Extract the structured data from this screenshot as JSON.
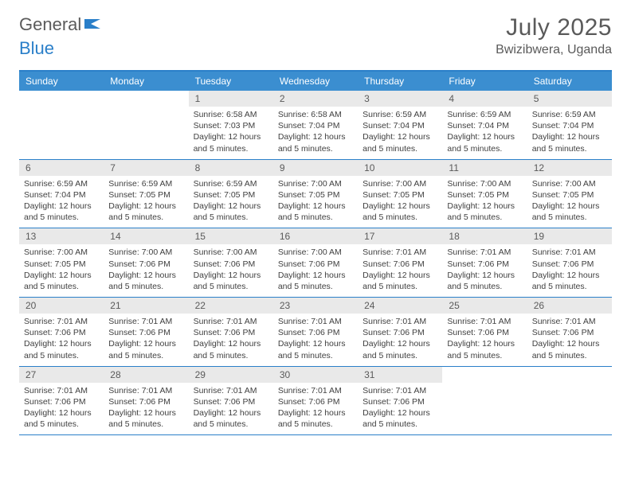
{
  "logo": {
    "word1": "General",
    "word2": "Blue"
  },
  "title": "July 2025",
  "location": "Bwizibwera, Uganda",
  "colors": {
    "header_bar": "#3b8ed0",
    "accent_line": "#2a7fc9",
    "day_num_bg": "#e9e9e9",
    "text_gray": "#5a5a5a",
    "body_text": "#404040",
    "logo_gray": "#5b5b5b",
    "logo_blue": "#2a7fc9"
  },
  "typography": {
    "month_title_size": 30,
    "location_size": 16,
    "dow_size": 12,
    "daynum_size": 12,
    "body_size": 10.5
  },
  "days_of_week": [
    "Sunday",
    "Monday",
    "Tuesday",
    "Wednesday",
    "Thursday",
    "Friday",
    "Saturday"
  ],
  "weeks": [
    [
      {
        "num": "",
        "lines": []
      },
      {
        "num": "",
        "lines": []
      },
      {
        "num": "1",
        "lines": [
          "Sunrise: 6:58 AM",
          "Sunset: 7:03 PM",
          "Daylight: 12 hours",
          "and 5 minutes."
        ]
      },
      {
        "num": "2",
        "lines": [
          "Sunrise: 6:58 AM",
          "Sunset: 7:04 PM",
          "Daylight: 12 hours",
          "and 5 minutes."
        ]
      },
      {
        "num": "3",
        "lines": [
          "Sunrise: 6:59 AM",
          "Sunset: 7:04 PM",
          "Daylight: 12 hours",
          "and 5 minutes."
        ]
      },
      {
        "num": "4",
        "lines": [
          "Sunrise: 6:59 AM",
          "Sunset: 7:04 PM",
          "Daylight: 12 hours",
          "and 5 minutes."
        ]
      },
      {
        "num": "5",
        "lines": [
          "Sunrise: 6:59 AM",
          "Sunset: 7:04 PM",
          "Daylight: 12 hours",
          "and 5 minutes."
        ]
      }
    ],
    [
      {
        "num": "6",
        "lines": [
          "Sunrise: 6:59 AM",
          "Sunset: 7:04 PM",
          "Daylight: 12 hours",
          "and 5 minutes."
        ]
      },
      {
        "num": "7",
        "lines": [
          "Sunrise: 6:59 AM",
          "Sunset: 7:05 PM",
          "Daylight: 12 hours",
          "and 5 minutes."
        ]
      },
      {
        "num": "8",
        "lines": [
          "Sunrise: 6:59 AM",
          "Sunset: 7:05 PM",
          "Daylight: 12 hours",
          "and 5 minutes."
        ]
      },
      {
        "num": "9",
        "lines": [
          "Sunrise: 7:00 AM",
          "Sunset: 7:05 PM",
          "Daylight: 12 hours",
          "and 5 minutes."
        ]
      },
      {
        "num": "10",
        "lines": [
          "Sunrise: 7:00 AM",
          "Sunset: 7:05 PM",
          "Daylight: 12 hours",
          "and 5 minutes."
        ]
      },
      {
        "num": "11",
        "lines": [
          "Sunrise: 7:00 AM",
          "Sunset: 7:05 PM",
          "Daylight: 12 hours",
          "and 5 minutes."
        ]
      },
      {
        "num": "12",
        "lines": [
          "Sunrise: 7:00 AM",
          "Sunset: 7:05 PM",
          "Daylight: 12 hours",
          "and 5 minutes."
        ]
      }
    ],
    [
      {
        "num": "13",
        "lines": [
          "Sunrise: 7:00 AM",
          "Sunset: 7:05 PM",
          "Daylight: 12 hours",
          "and 5 minutes."
        ]
      },
      {
        "num": "14",
        "lines": [
          "Sunrise: 7:00 AM",
          "Sunset: 7:06 PM",
          "Daylight: 12 hours",
          "and 5 minutes."
        ]
      },
      {
        "num": "15",
        "lines": [
          "Sunrise: 7:00 AM",
          "Sunset: 7:06 PM",
          "Daylight: 12 hours",
          "and 5 minutes."
        ]
      },
      {
        "num": "16",
        "lines": [
          "Sunrise: 7:00 AM",
          "Sunset: 7:06 PM",
          "Daylight: 12 hours",
          "and 5 minutes."
        ]
      },
      {
        "num": "17",
        "lines": [
          "Sunrise: 7:01 AM",
          "Sunset: 7:06 PM",
          "Daylight: 12 hours",
          "and 5 minutes."
        ]
      },
      {
        "num": "18",
        "lines": [
          "Sunrise: 7:01 AM",
          "Sunset: 7:06 PM",
          "Daylight: 12 hours",
          "and 5 minutes."
        ]
      },
      {
        "num": "19",
        "lines": [
          "Sunrise: 7:01 AM",
          "Sunset: 7:06 PM",
          "Daylight: 12 hours",
          "and 5 minutes."
        ]
      }
    ],
    [
      {
        "num": "20",
        "lines": [
          "Sunrise: 7:01 AM",
          "Sunset: 7:06 PM",
          "Daylight: 12 hours",
          "and 5 minutes."
        ]
      },
      {
        "num": "21",
        "lines": [
          "Sunrise: 7:01 AM",
          "Sunset: 7:06 PM",
          "Daylight: 12 hours",
          "and 5 minutes."
        ]
      },
      {
        "num": "22",
        "lines": [
          "Sunrise: 7:01 AM",
          "Sunset: 7:06 PM",
          "Daylight: 12 hours",
          "and 5 minutes."
        ]
      },
      {
        "num": "23",
        "lines": [
          "Sunrise: 7:01 AM",
          "Sunset: 7:06 PM",
          "Daylight: 12 hours",
          "and 5 minutes."
        ]
      },
      {
        "num": "24",
        "lines": [
          "Sunrise: 7:01 AM",
          "Sunset: 7:06 PM",
          "Daylight: 12 hours",
          "and 5 minutes."
        ]
      },
      {
        "num": "25",
        "lines": [
          "Sunrise: 7:01 AM",
          "Sunset: 7:06 PM",
          "Daylight: 12 hours",
          "and 5 minutes."
        ]
      },
      {
        "num": "26",
        "lines": [
          "Sunrise: 7:01 AM",
          "Sunset: 7:06 PM",
          "Daylight: 12 hours",
          "and 5 minutes."
        ]
      }
    ],
    [
      {
        "num": "27",
        "lines": [
          "Sunrise: 7:01 AM",
          "Sunset: 7:06 PM",
          "Daylight: 12 hours",
          "and 5 minutes."
        ]
      },
      {
        "num": "28",
        "lines": [
          "Sunrise: 7:01 AM",
          "Sunset: 7:06 PM",
          "Daylight: 12 hours",
          "and 5 minutes."
        ]
      },
      {
        "num": "29",
        "lines": [
          "Sunrise: 7:01 AM",
          "Sunset: 7:06 PM",
          "Daylight: 12 hours",
          "and 5 minutes."
        ]
      },
      {
        "num": "30",
        "lines": [
          "Sunrise: 7:01 AM",
          "Sunset: 7:06 PM",
          "Daylight: 12 hours",
          "and 5 minutes."
        ]
      },
      {
        "num": "31",
        "lines": [
          "Sunrise: 7:01 AM",
          "Sunset: 7:06 PM",
          "Daylight: 12 hours",
          "and 5 minutes."
        ]
      },
      {
        "num": "",
        "lines": []
      },
      {
        "num": "",
        "lines": []
      }
    ]
  ]
}
